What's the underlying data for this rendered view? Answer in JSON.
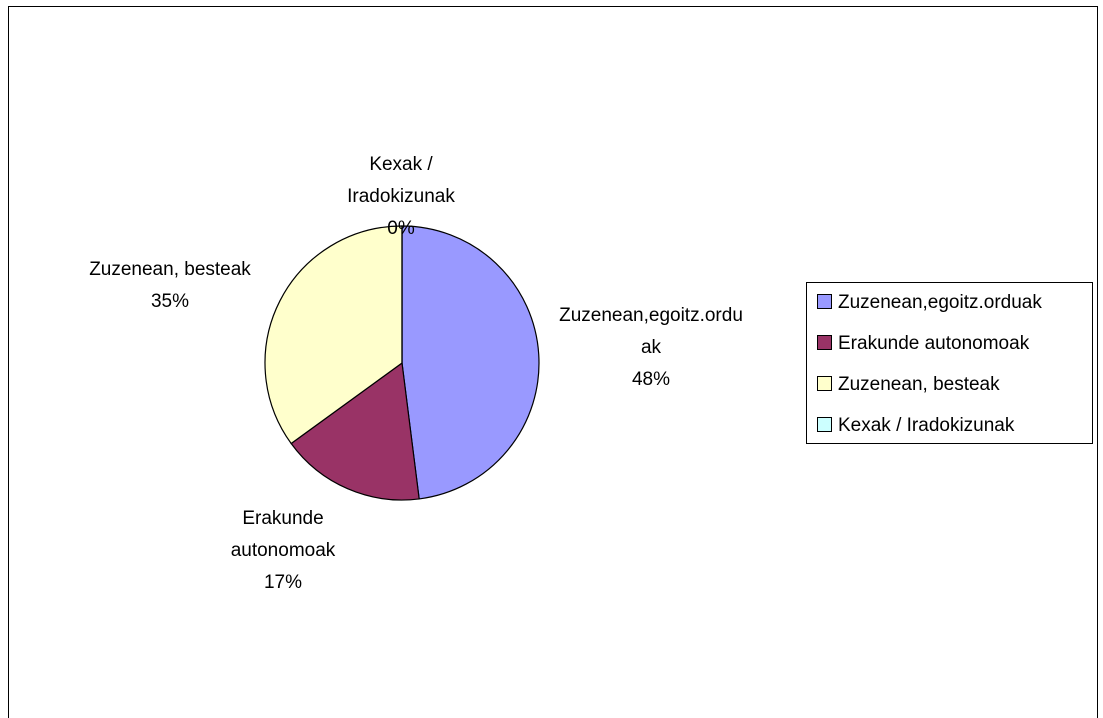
{
  "chart_data": {
    "type": "pie",
    "categories": [
      "Zuzenean,egoitz.orduak",
      "Erakunde autonomoak",
      "Zuzenean, besteak",
      "Kexak / Iradokizunak"
    ],
    "values": [
      48,
      17,
      35,
      0
    ],
    "value_labels": [
      "48%",
      "17%",
      "35%",
      "0%"
    ],
    "colors": [
      "#9999ff",
      "#993366",
      "#ffffcc",
      "#ccffff"
    ],
    "legend": "right"
  }
}
